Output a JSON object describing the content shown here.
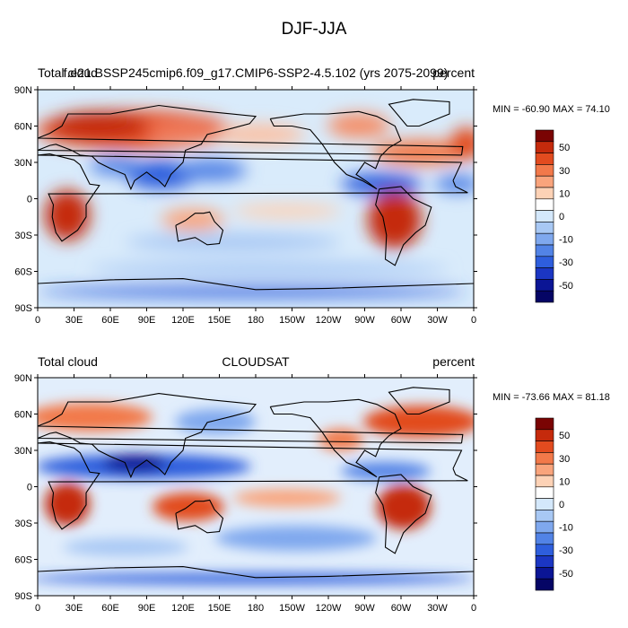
{
  "title": "DJF-JJA",
  "panels": [
    {
      "left_label": "Total cloud",
      "center_label": "f.e21.BSSP245cmip6.f09_g17.CMIP6-SSP2-4.5.102 (yrs 2075-2099)",
      "right_label": "percent",
      "minmax": "MIN = -60.90 MAX =  74.10"
    },
    {
      "left_label": "Total cloud",
      "center_label": "CLOUDSAT",
      "right_label": "percent",
      "minmax": "MIN = -73.66 MAX =  81.18"
    }
  ],
  "lat_ticks": [
    "90N",
    "60N",
    "30N",
    "0",
    "30S",
    "60S",
    "90S"
  ],
  "lon_ticks": [
    "0",
    "30E",
    "60E",
    "90E",
    "120E",
    "150E",
    "180",
    "150W",
    "120W",
    "90W",
    "60W",
    "30W",
    "0"
  ],
  "colorbar_labels": [
    "50",
    "30",
    "10",
    "0",
    "-10",
    "-30",
    "-50"
  ],
  "colorbar_colors": [
    "#7a0403",
    "#c52a0c",
    "#e24b1f",
    "#f2794a",
    "#f9a47c",
    "#fdd2b6",
    "#ffffff",
    "#d4e8fb",
    "#a8c8f4",
    "#7fa8ee",
    "#5283e6",
    "#2e5edd",
    "#1b36c3",
    "#0b1595",
    "#050565"
  ],
  "colors": {
    "land_outline": "#000000",
    "background": "#ffffff"
  }
}
